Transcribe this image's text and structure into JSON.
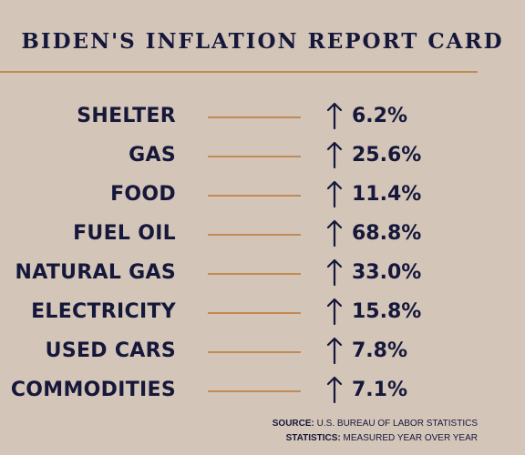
{
  "title": "BIDEN'S INFLATION REPORT CARD",
  "rows": [
    {
      "label": "SHELTER",
      "value": "6.2%"
    },
    {
      "label": "GAS",
      "value": "25.6%"
    },
    {
      "label": "FOOD",
      "value": "11.4%"
    },
    {
      "label": "FUEL OIL",
      "value": "68.8%"
    },
    {
      "label": "NATURAL GAS",
      "value": "33.0%"
    },
    {
      "label": "ELECTRICITY",
      "value": "15.8%"
    },
    {
      "label": "USED CARS",
      "value": "7.8%"
    },
    {
      "label": "COMMODITIES",
      "value": "7.1%"
    }
  ],
  "footer": {
    "source_key": "SOURCE:",
    "source_value": "U.S. BUREAU OF LABOR STATISTICS",
    "stats_key": "STATISTICS:",
    "stats_value": "MEASURED YEAR OVER YEAR"
  },
  "icons": {
    "row_arrow": "up-arrow-icon"
  },
  "colors": {
    "background": "#d4c5b9",
    "text": "#15183a",
    "accent_line": "#c28a55"
  }
}
